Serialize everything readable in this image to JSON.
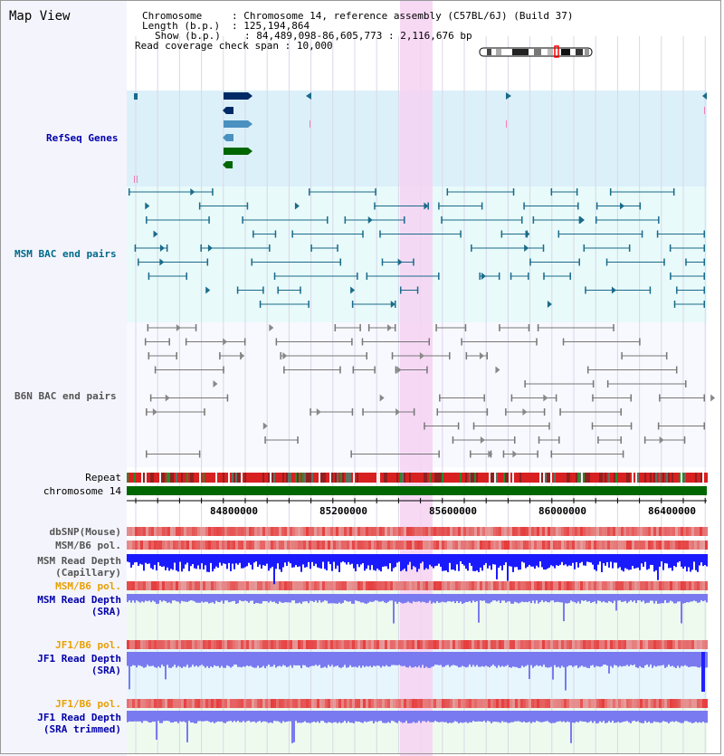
{
  "view_title": "Map View",
  "info": {
    "chromosome_key": "Chromosome",
    "chromosome_value": "Chromosome 14, reference assembly (C57BL/6J) (Build 37)",
    "length_key": "Length (b.p.)",
    "length_value": "125,194,864",
    "show_key": "Show (b.p.)",
    "show_value": "84,489,098-86,605,773 : 2,116,676 bp",
    "coverage_key": "Read coverage check span",
    "coverage_value": "10,000"
  },
  "tracks": {
    "refseq": "RefSeq Genes",
    "msm_bac": "MSM BAC end pairs",
    "b6n_bac": "B6N BAC end pairs",
    "repeat": "Repeat",
    "chromosome": "chromosome 14",
    "dbsnp": "dbSNP(Mouse)",
    "msm_b6_pol_1": "MSM/B6 pol.",
    "msm_depth_cap_1": "MSM Read Depth",
    "msm_depth_cap_2": "(Capillary)",
    "msm_b6_pol_2": "MSM/B6 pol.",
    "msm_depth_sra_1": "MSM Read Depth",
    "msm_depth_sra_2": "(SRA)",
    "jf1_b6_pol_1": "JF1/B6 pol.",
    "jf1_depth_sra_1": "JF1 Read Depth",
    "jf1_depth_sra_2": "(SRA)",
    "jf1_b6_pol_2": "JF1/B6 pol.",
    "jf1_depth_trim_1": "JF1 Read Depth",
    "jf1_depth_trim_2": "(SRA trimmed)"
  },
  "axis_ticks": [
    "84800000",
    "85200000",
    "85600000",
    "86000000",
    "86400000"
  ],
  "colors": {
    "refseq_bg": "#dcf0fa",
    "bac_bg": "#e8fafa",
    "highlight": "#f6d2f2",
    "chromosome_bar": "#006600",
    "depth_blue": "#1a1aff",
    "depth_light": "#7a7af0",
    "pol_red": "#e04040",
    "teal": "#1a6b8a",
    "gray": "#777777"
  }
}
